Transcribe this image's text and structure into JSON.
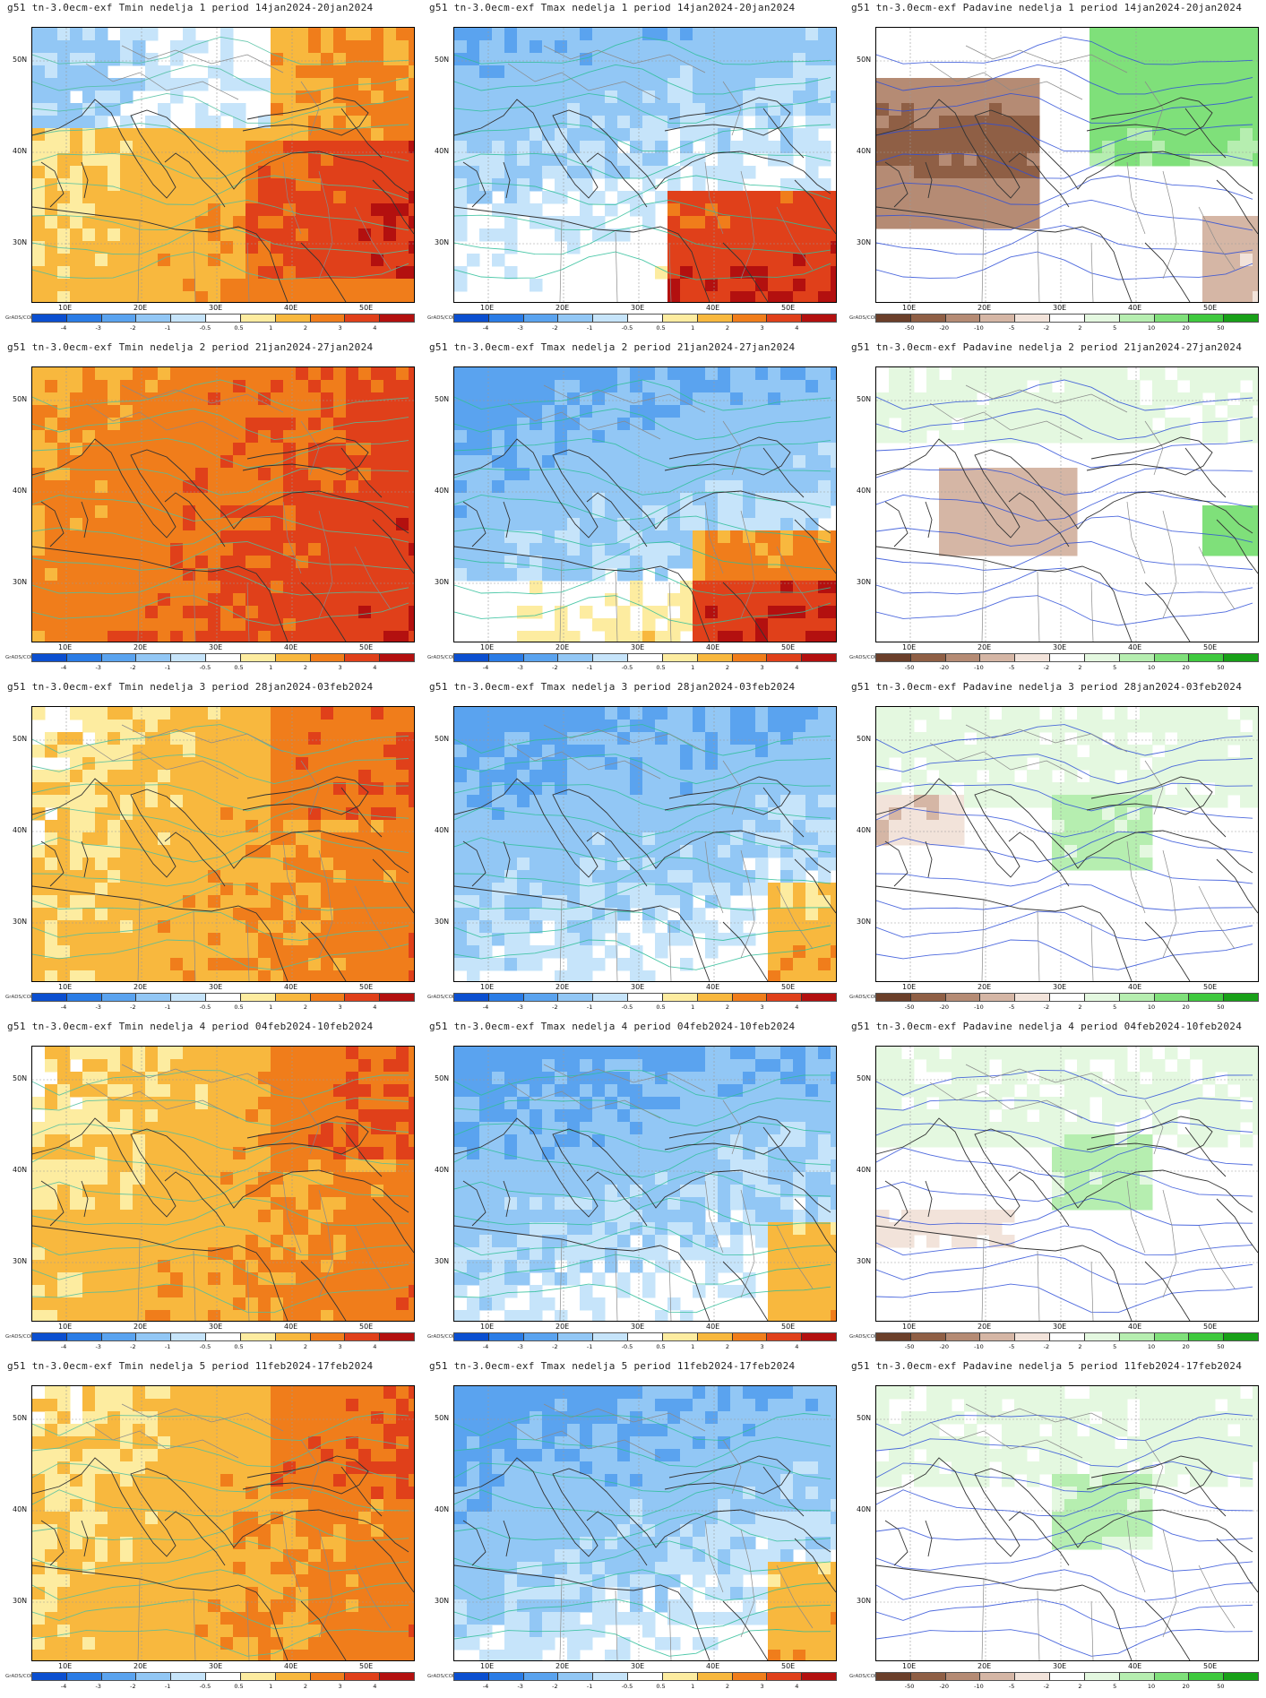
{
  "grads_label": "GrADS/COLA",
  "lat_labels": [
    "50N",
    "40N",
    "30N"
  ],
  "lon_labels": [
    "10E",
    "20E",
    "30E",
    "40E",
    "50E"
  ],
  "columns": [
    "Tmin",
    "Tmax",
    "Padavine"
  ],
  "colorbars": {
    "temp": {
      "labels": [
        "-4",
        "-3",
        "-2",
        "-1",
        "-0.5",
        "0.5",
        "1",
        "2",
        "3",
        "4"
      ],
      "colors": [
        "#0b4fd0",
        "#2a7ce6",
        "#5aa3ef",
        "#92c7f5",
        "#c6e4fa",
        "#ffffff",
        "#fdeca0",
        "#f8b83e",
        "#f07d1b",
        "#e0401a",
        "#b3100f"
      ]
    },
    "precip": {
      "labels": [
        "-50",
        "-20",
        "-10",
        "-5",
        "-2",
        "2",
        "5",
        "10",
        "20",
        "50"
      ],
      "colors": [
        "#6b3f2a",
        "#8f5f45",
        "#b58b74",
        "#d5b6a5",
        "#f2e3da",
        "#ffffff",
        "#e4f8e0",
        "#b6eeb0",
        "#7fe07a",
        "#3fc93e",
        "#18a018"
      ]
    }
  },
  "rows": [
    {
      "titles": [
        "g51 tn-3.0ecm-exf Tmin nedelja 1 period 14jan2024-20jan2024",
        "g51 tn-3.0ecm-exf Tmax nedelja 1 period 14jan2024-20jan2024",
        "g51 tn-3.0ecm-exf Padavine nedelja 1 period 14jan2024-20jan2024"
      ],
      "tmin": "warm-east",
      "tmax": "cold-north-warm-se",
      "precip": "dry-med-wet-ne"
    },
    {
      "titles": [
        "g51 tn-3.0ecm-exf Tmin nedelja 2 period 21jan2024-27jan2024",
        "g51 tn-3.0ecm-exf Tmax nedelja 2 period 21jan2024-27jan2024",
        "g51 tn-3.0ecm-exf Padavine nedelja 2 period 21jan2024-27jan2024"
      ],
      "tmin": "very-warm",
      "tmax": "cold-north",
      "precip": "mixed"
    },
    {
      "titles": [
        "g51 tn-3.0ecm-exf Tmin nedelja 3 period 28jan2024-03feb2024",
        "g51 tn-3.0ecm-exf Tmax nedelja 3 period 28jan2024-03feb2024",
        "g51 tn-3.0ecm-exf Padavine nedelja 3 period 28jan2024-03feb2024"
      ],
      "tmin": "warm",
      "tmax": "cold",
      "precip": "light"
    },
    {
      "titles": [
        "g51 tn-3.0ecm-exf Tmin nedelja 4 period 04feb2024-10feb2024",
        "g51 tn-3.0ecm-exf Tmax nedelja 4 period 04feb2024-10feb2024",
        "g51 tn-3.0ecm-exf Padavine nedelja 4 period 04feb2024-10feb2024"
      ],
      "tmin": "warm",
      "tmax": "cold",
      "precip": "light"
    },
    {
      "titles": [
        "g51 tn-3.0ecm-exf Tmin nedelja 5 period 11feb2024-17feb2024",
        "g51 tn-3.0ecm-exf Tmax nedelja 5 period 11feb2024-17feb2024",
        "g51 tn-3.0ecm-exf Padavine nedelja 5 period 11feb2024-17feb2024"
      ],
      "tmin": "warm",
      "tmax": "cold",
      "precip": "light"
    }
  ]
}
